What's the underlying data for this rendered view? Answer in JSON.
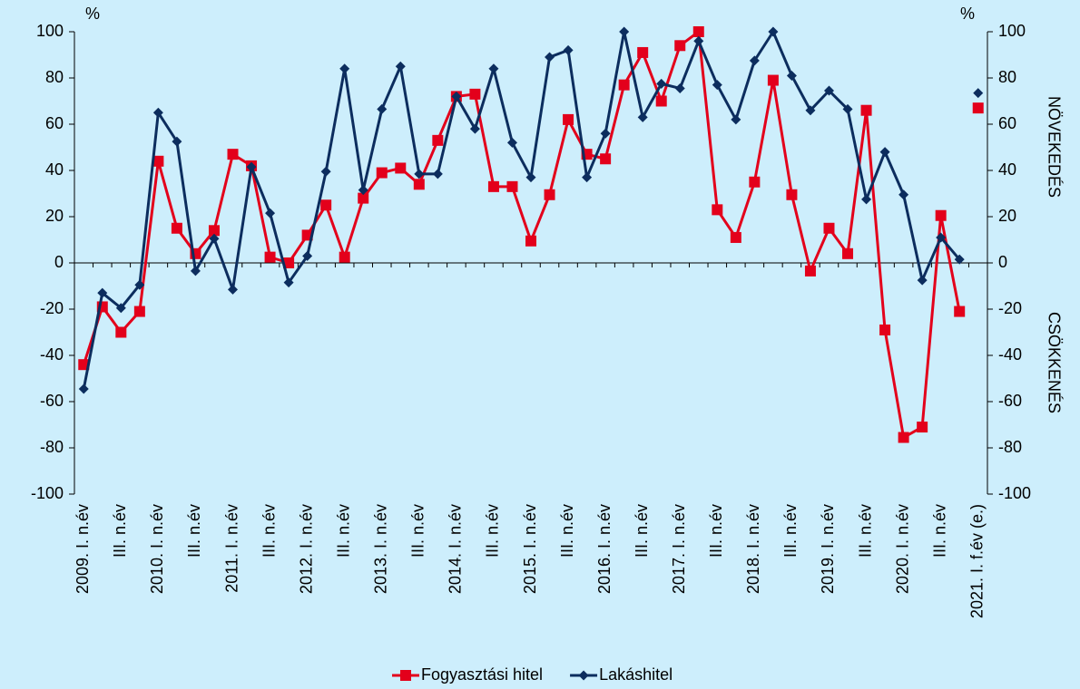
{
  "chart_data": {
    "type": "line",
    "y_unit_label": "%",
    "y2_unit_label": "%",
    "annotations": [
      "NÖVEKEDÉS",
      "CSÖKKENÉS"
    ],
    "categories": [
      "2009. I. n.év",
      null,
      "III. n.év",
      null,
      "2010. I. n.év",
      null,
      "III. n.év",
      null,
      "2011. I. n.év",
      null,
      "III. n.év",
      null,
      "2012. I. n.év",
      null,
      "III. n.év",
      null,
      "2013. I. n.év",
      null,
      "III. n.év",
      null,
      "2014. I. n.év",
      null,
      "III. n.év",
      null,
      "2015. I. n.év",
      null,
      "III. n.év",
      null,
      "2016. I. n.év",
      null,
      "III. n.év",
      null,
      "2017. I. n.év",
      null,
      "III. n.év",
      null,
      "2018. I. n.év",
      null,
      "III. n.év",
      null,
      "2019. I. n.év",
      null,
      "III. n.év",
      null,
      "2020. I. n.év",
      null,
      "III. n.év",
      null,
      "2021. I. f.év (e.)"
    ],
    "series": [
      {
        "name": "Fogyasztási hitel",
        "color": "#e3001b",
        "marker": "square",
        "values": [
          -44,
          -19,
          -30,
          -21,
          44,
          15,
          4,
          14,
          47,
          42,
          2.5,
          0,
          12,
          25,
          2.5,
          28,
          39,
          41,
          34,
          53,
          72,
          73,
          33,
          33,
          9.5,
          29.5,
          62,
          47,
          45,
          77,
          91,
          70,
          94,
          100,
          23,
          11,
          35,
          79,
          29.5,
          -3.5,
          15,
          4,
          66,
          -29,
          -75.5,
          -71,
          20.5,
          -21,
          67
        ]
      },
      {
        "name": "Lakáshitel",
        "color": "#0c2d5e",
        "marker": "diamond",
        "values": [
          -54.5,
          -13,
          -19.5,
          -9.5,
          65,
          52.5,
          -3.5,
          10.5,
          -11.5,
          41.5,
          21.5,
          -8.5,
          3,
          39.5,
          84,
          31.5,
          66.5,
          85,
          38.5,
          38.5,
          72,
          58,
          84,
          52,
          37,
          89,
          92,
          37,
          56,
          100,
          63,
          77.5,
          75.5,
          96,
          77,
          62,
          87.5,
          100,
          81,
          66,
          74.5,
          66.5,
          27.5,
          48,
          29.5,
          -7.5,
          11,
          1.5,
          73.5
        ]
      }
    ],
    "last_point_separate": true,
    "ylim": [
      -100,
      100
    ],
    "yticks": [
      -100,
      -80,
      -60,
      -40,
      -20,
      0,
      20,
      40,
      60,
      80,
      100
    ],
    "y2lim": [
      -100,
      100
    ],
    "y2ticks": [
      -100,
      -80,
      -60,
      -40,
      -20,
      0,
      20,
      40,
      60,
      80,
      100
    ],
    "legend": "bottom"
  }
}
